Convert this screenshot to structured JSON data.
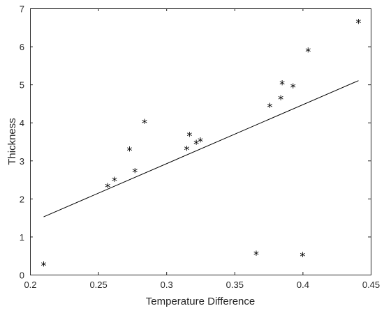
{
  "chart_data": {
    "type": "scatter",
    "title": "",
    "xlabel": "Temperature Difference",
    "ylabel": "Thickness",
    "xlim": [
      0.2,
      0.45
    ],
    "ylim": [
      0,
      7
    ],
    "xticks": [
      "0.2",
      "0.25",
      "0.3",
      "0.35",
      "0.4",
      "0.45"
    ],
    "yticks": [
      "0",
      "1",
      "2",
      "3",
      "4",
      "5",
      "6",
      "7"
    ],
    "grid": false,
    "legend": "none",
    "colors": {
      "marker": "#000000",
      "line": "#000000",
      "axes": "#262626"
    },
    "points": [
      {
        "x": 0.21,
        "y": 0.27
      },
      {
        "x": 0.257,
        "y": 2.33
      },
      {
        "x": 0.262,
        "y": 2.49
      },
      {
        "x": 0.273,
        "y": 3.29
      },
      {
        "x": 0.277,
        "y": 2.72
      },
      {
        "x": 0.284,
        "y": 4.01
      },
      {
        "x": 0.315,
        "y": 3.31
      },
      {
        "x": 0.317,
        "y": 3.67
      },
      {
        "x": 0.322,
        "y": 3.46
      },
      {
        "x": 0.325,
        "y": 3.53
      },
      {
        "x": 0.366,
        "y": 0.55
      },
      {
        "x": 0.376,
        "y": 4.43
      },
      {
        "x": 0.384,
        "y": 4.64
      },
      {
        "x": 0.385,
        "y": 5.03
      },
      {
        "x": 0.393,
        "y": 4.95
      },
      {
        "x": 0.4,
        "y": 0.51
      },
      {
        "x": 0.404,
        "y": 5.89
      },
      {
        "x": 0.441,
        "y": 6.64
      }
    ],
    "fit_line": {
      "x": [
        0.21,
        0.441
      ],
      "y": [
        1.52,
        5.1
      ]
    }
  }
}
